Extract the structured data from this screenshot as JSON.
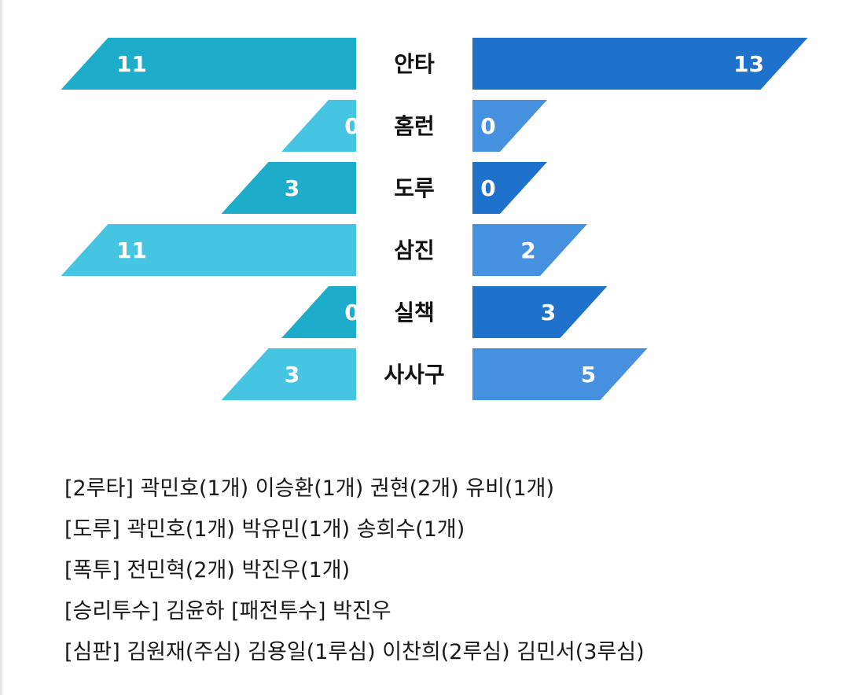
{
  "chart_data": {
    "type": "bar",
    "orientation": "horizontal-butterfly",
    "categories": [
      "안타",
      "홈런",
      "도루",
      "삼진",
      "실책",
      "사사구"
    ],
    "series": [
      {
        "values": [
          11,
          0,
          3,
          11,
          0,
          3
        ],
        "colors": [
          "#1eaccb",
          "#46c5e2",
          "#1eaccb",
          "#46c5e2",
          "#1eaccb",
          "#46c5e2"
        ]
      },
      {
        "values": [
          13,
          0,
          0,
          2,
          3,
          5
        ],
        "colors": [
          "#1e72cc",
          "#4690e0",
          "#1e72cc",
          "#4690e0",
          "#1e72cc",
          "#4690e0"
        ]
      }
    ],
    "value_labels": {
      "left": [
        "11",
        "0",
        "3",
        "11",
        "0",
        "3"
      ],
      "right": [
        "13",
        "0",
        "0",
        "2",
        "3",
        "5"
      ]
    }
  },
  "notes": [
    {
      "text": "[2루타]  곽민호(1개) 이승환(1개) 권현(2개) 유비(1개)"
    },
    {
      "text": "[도루]  곽민호(1개) 박유민(1개) 송희수(1개)"
    },
    {
      "text": "[폭투]  전민혁(2개) 박진우(1개)"
    },
    {
      "text": "[승리투수] 김윤하  [패전투수] 박진우"
    },
    {
      "text": "[심판]  김원재(주심) 김용일(1루심) 이찬희(2루심) 김민서(3루심)"
    }
  ]
}
